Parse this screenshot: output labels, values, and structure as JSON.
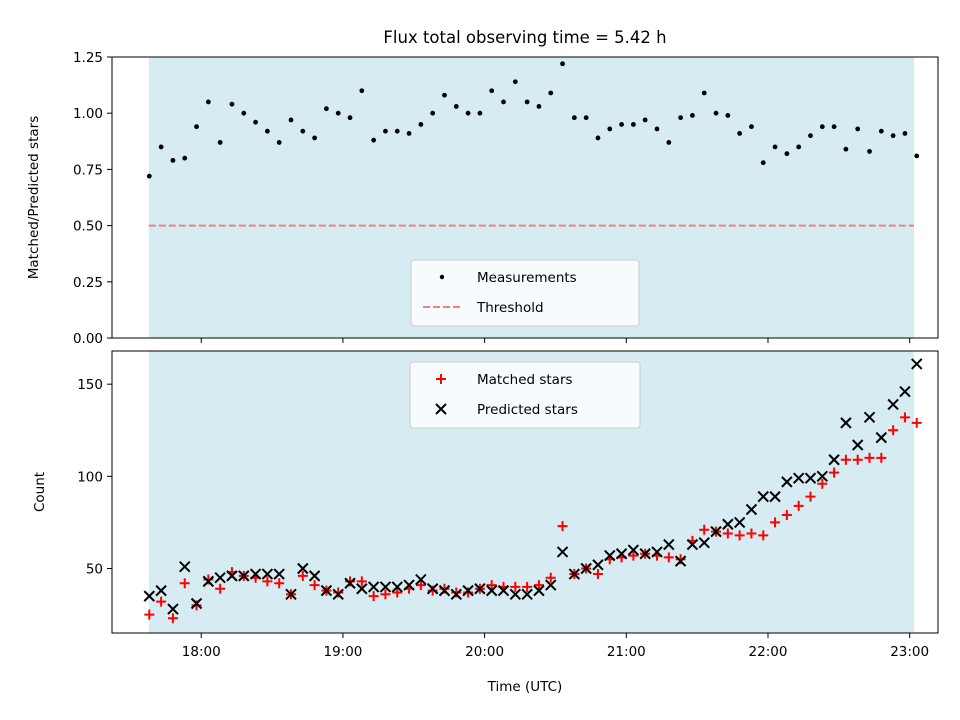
{
  "title": "Flux total observing time = 5.42 h",
  "colors": {
    "background_band": "#add8e6",
    "measurement": "#000000",
    "threshold": "#f08080",
    "matched": "#ff0000",
    "predicted": "#000000"
  },
  "chart_data": [
    {
      "type": "scatter",
      "title": "Flux total observing time = 5.42 h",
      "xlabel": "",
      "ylabel": "Matched/Predicted stars",
      "ylim": [
        0,
        1.25
      ],
      "yticks": [
        "0.00",
        "0.25",
        "0.50",
        "0.75",
        "1.00",
        "1.25"
      ],
      "xlim_hours": [
        17.37,
        23.2
      ],
      "shaded_span_hours": [
        17.63,
        23.03
      ],
      "threshold": 0.5,
      "legend": {
        "position": "lower center",
        "entries": [
          "Measurements",
          "Threshold"
        ]
      },
      "series": [
        {
          "name": "Measurements",
          "x": [
            "17:38",
            "17:43",
            "17:48",
            "17:53",
            "17:58",
            "18:03",
            "18:08",
            "18:13",
            "18:18",
            "18:23",
            "18:28",
            "18:33",
            "18:38",
            "18:43",
            "18:48",
            "18:53",
            "18:58",
            "19:03",
            "19:08",
            "19:13",
            "19:18",
            "19:23",
            "19:28",
            "19:33",
            "19:38",
            "19:43",
            "19:48",
            "19:53",
            "19:58",
            "20:03",
            "20:08",
            "20:13",
            "20:18",
            "20:23",
            "20:28",
            "20:33",
            "20:38",
            "20:43",
            "20:48",
            "20:53",
            "20:58",
            "21:03",
            "21:08",
            "21:13",
            "21:18",
            "21:23",
            "21:28",
            "21:33",
            "21:38",
            "21:43",
            "21:48",
            "21:53",
            "21:58",
            "22:03",
            "22:08",
            "22:13",
            "22:18",
            "22:23",
            "22:28",
            "22:33",
            "22:38",
            "22:43",
            "22:48",
            "22:53",
            "22:58",
            "23:03"
          ],
          "y": [
            0.72,
            0.85,
            0.79,
            0.8,
            0.94,
            1.05,
            0.87,
            1.04,
            1.0,
            0.96,
            0.92,
            0.87,
            0.97,
            0.92,
            0.89,
            1.02,
            1.0,
            0.98,
            1.1,
            0.88,
            0.92,
            0.92,
            0.91,
            0.95,
            1.0,
            1.08,
            1.03,
            1.0,
            1.0,
            1.1,
            1.05,
            1.14,
            1.05,
            1.03,
            1.09,
            1.22,
            0.98,
            0.98,
            0.89,
            0.93,
            0.95,
            0.95,
            0.97,
            0.93,
            0.87,
            0.98,
            0.99,
            1.09,
            1.0,
            0.99,
            0.91,
            0.94,
            0.78,
            0.85,
            0.82,
            0.85,
            0.9,
            0.94,
            0.94,
            0.84,
            0.93,
            0.83,
            0.92,
            0.9,
            0.91,
            0.81
          ]
        }
      ]
    },
    {
      "type": "scatter",
      "xlabel": "Time (UTC)",
      "ylabel": "Count",
      "ylim": [
        15,
        168
      ],
      "yticks": [
        "50",
        "100",
        "150"
      ],
      "xticks": [
        "18:00",
        "19:00",
        "20:00",
        "21:00",
        "22:00",
        "23:00"
      ],
      "xlim_hours": [
        17.37,
        23.2
      ],
      "shaded_span_hours": [
        17.63,
        23.03
      ],
      "legend": {
        "position": "upper center",
        "entries": [
          "Matched stars",
          "Predicted stars"
        ]
      },
      "series": [
        {
          "name": "Matched stars",
          "x": [
            "17:38",
            "17:43",
            "17:48",
            "17:53",
            "17:58",
            "18:03",
            "18:08",
            "18:13",
            "18:18",
            "18:23",
            "18:28",
            "18:33",
            "18:38",
            "18:43",
            "18:48",
            "18:53",
            "18:58",
            "19:03",
            "19:08",
            "19:13",
            "19:18",
            "19:23",
            "19:28",
            "19:33",
            "19:38",
            "19:43",
            "19:48",
            "19:53",
            "19:58",
            "20:03",
            "20:08",
            "20:13",
            "20:18",
            "20:23",
            "20:28",
            "20:33",
            "20:38",
            "20:43",
            "20:48",
            "20:53",
            "20:58",
            "21:03",
            "21:08",
            "21:13",
            "21:18",
            "21:23",
            "21:28",
            "21:33",
            "21:38",
            "21:43",
            "21:48",
            "21:53",
            "21:58",
            "22:03",
            "22:08",
            "22:13",
            "22:18",
            "22:23",
            "22:28",
            "22:33",
            "22:38",
            "22:43",
            "22:48",
            "22:53",
            "22:58",
            "23:03"
          ],
          "y": [
            25,
            32,
            23,
            42,
            30,
            44,
            39,
            48,
            46,
            45,
            43,
            42,
            36,
            46,
            41,
            38,
            37,
            43,
            43,
            35,
            36,
            37,
            39,
            41,
            38,
            39,
            37,
            37,
            39,
            41,
            40,
            40,
            40,
            41,
            45,
            73,
            47,
            50,
            47,
            55,
            56,
            57,
            58,
            57,
            56,
            55,
            65,
            71,
            70,
            69,
            68,
            69,
            68,
            75,
            79,
            84,
            89,
            96,
            102,
            109,
            109,
            110,
            110,
            125,
            132,
            129
          ]
        },
        {
          "name": "Predicted stars",
          "x": [
            "17:38",
            "17:43",
            "17:48",
            "17:53",
            "17:58",
            "18:03",
            "18:08",
            "18:13",
            "18:18",
            "18:23",
            "18:28",
            "18:33",
            "18:38",
            "18:43",
            "18:48",
            "18:53",
            "18:58",
            "19:03",
            "19:08",
            "19:13",
            "19:18",
            "19:23",
            "19:28",
            "19:33",
            "19:38",
            "19:43",
            "19:48",
            "19:53",
            "19:58",
            "20:03",
            "20:08",
            "20:13",
            "20:18",
            "20:23",
            "20:28",
            "20:33",
            "20:38",
            "20:43",
            "20:48",
            "20:53",
            "20:58",
            "21:03",
            "21:08",
            "21:13",
            "21:18",
            "21:23",
            "21:28",
            "21:33",
            "21:38",
            "21:43",
            "21:48",
            "21:53",
            "21:58",
            "22:03",
            "22:08",
            "22:13",
            "22:18",
            "22:23",
            "22:28",
            "22:33",
            "22:38",
            "22:43",
            "22:48",
            "22:53",
            "22:58",
            "23:03"
          ],
          "y": [
            35,
            38,
            28,
            51,
            31,
            43,
            45,
            46,
            46,
            47,
            47,
            47,
            36,
            50,
            46,
            38,
            36,
            42,
            39,
            40,
            40,
            40,
            41,
            44,
            39,
            38,
            36,
            38,
            39,
            38,
            38,
            36,
            36,
            38,
            41,
            59,
            47,
            50,
            52,
            57,
            58,
            60,
            58,
            59,
            63,
            54,
            63,
            64,
            70,
            74,
            75,
            82,
            89,
            89,
            97,
            99,
            99,
            100,
            109,
            129,
            117,
            132,
            121,
            139,
            146,
            161
          ]
        }
      ]
    }
  ]
}
